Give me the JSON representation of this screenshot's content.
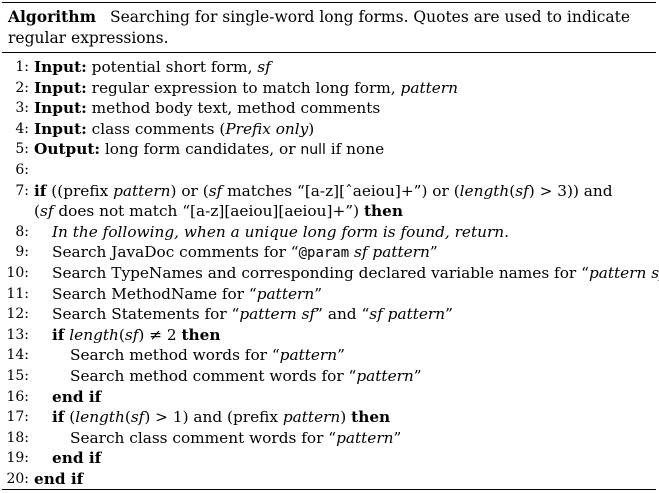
{
  "caption": {
    "head": "Algorithm",
    "text": "Searching for single-word long forms. Quotes are used to indicate regular expressions."
  },
  "lines": [
    {
      "n": "1:",
      "indent": 0,
      "parts": [
        [
          "kw",
          "Input:"
        ],
        [
          "t",
          " potential short form, "
        ],
        [
          "it",
          "sf"
        ]
      ]
    },
    {
      "n": "2:",
      "indent": 0,
      "parts": [
        [
          "kw",
          "Input:"
        ],
        [
          "t",
          " regular expression to match long form, "
        ],
        [
          "it",
          "pattern"
        ]
      ]
    },
    {
      "n": "3:",
      "indent": 0,
      "parts": [
        [
          "kw",
          "Input:"
        ],
        [
          "t",
          " method body text, method comments"
        ]
      ]
    },
    {
      "n": "4:",
      "indent": 0,
      "parts": [
        [
          "kw",
          "Input:"
        ],
        [
          "t",
          " class comments ("
        ],
        [
          "it",
          "Prefix only"
        ],
        [
          "t",
          ")"
        ]
      ]
    },
    {
      "n": "5:",
      "indent": 0,
      "parts": [
        [
          "kw",
          "Output:"
        ],
        [
          "t",
          " long form candidates, or "
        ],
        [
          "sans",
          "null"
        ],
        [
          "t",
          " if none"
        ]
      ]
    },
    {
      "n": "6:",
      "indent": 0,
      "parts": []
    },
    {
      "n": "7:",
      "indent": 0,
      "parts": [
        [
          "kw",
          "if"
        ],
        [
          "t",
          " ((prefix "
        ],
        [
          "it",
          "pattern"
        ],
        [
          "t",
          ") or ("
        ],
        [
          "it",
          "sf"
        ],
        [
          "t",
          " matches “[a-z][ˆaeiou]+”) or ("
        ],
        [
          "it",
          "length"
        ],
        [
          "t",
          "("
        ],
        [
          "it",
          "sf"
        ],
        [
          "t",
          ") > 3)) and"
        ]
      ]
    },
    {
      "n": "",
      "indent": 0,
      "parts": [
        [
          "t",
          "("
        ],
        [
          "it",
          "sf"
        ],
        [
          "t",
          " does not match “[a-z][aeiou][aeiou]+”) "
        ],
        [
          "kw",
          "then"
        ]
      ]
    },
    {
      "n": "8:",
      "indent": 1,
      "parts": [
        [
          "it",
          "In the following, when a unique long form is found, return."
        ]
      ]
    },
    {
      "n": "9:",
      "indent": 1,
      "parts": [
        [
          "t",
          "Search JavaDoc comments for “"
        ],
        [
          "mono",
          "@param"
        ],
        [
          "t",
          " "
        ],
        [
          "it",
          "sf pattern"
        ],
        [
          "t",
          "”"
        ]
      ]
    },
    {
      "n": "10:",
      "indent": 1,
      "parts": [
        [
          "t",
          "Search TypeNames and corresponding declared variable names for “"
        ],
        [
          "it",
          "pattern sf"
        ],
        [
          "t",
          "”"
        ]
      ]
    },
    {
      "n": "11:",
      "indent": 1,
      "parts": [
        [
          "t",
          "Search MethodName for “"
        ],
        [
          "it",
          "pattern"
        ],
        [
          "t",
          "”"
        ]
      ]
    },
    {
      "n": "12:",
      "indent": 1,
      "parts": [
        [
          "t",
          "Search Statements for “"
        ],
        [
          "it",
          "pattern sf"
        ],
        [
          "t",
          "” and “"
        ],
        [
          "it",
          "sf pattern"
        ],
        [
          "t",
          "”"
        ]
      ]
    },
    {
      "n": "13:",
      "indent": 1,
      "parts": [
        [
          "kw",
          "if"
        ],
        [
          "t",
          " "
        ],
        [
          "it",
          "length"
        ],
        [
          "t",
          "("
        ],
        [
          "it",
          "sf"
        ],
        [
          "t",
          ") ≠ 2 "
        ],
        [
          "kw",
          "then"
        ]
      ]
    },
    {
      "n": "14:",
      "indent": 2,
      "parts": [
        [
          "t",
          "Search method words for “"
        ],
        [
          "it",
          "pattern"
        ],
        [
          "t",
          "”"
        ]
      ]
    },
    {
      "n": "15:",
      "indent": 2,
      "parts": [
        [
          "t",
          "Search method comment words for “"
        ],
        [
          "it",
          "pattern"
        ],
        [
          "t",
          "”"
        ]
      ]
    },
    {
      "n": "16:",
      "indent": 1,
      "parts": [
        [
          "kw",
          "end if"
        ]
      ]
    },
    {
      "n": "17:",
      "indent": 1,
      "parts": [
        [
          "kw",
          "if"
        ],
        [
          "t",
          " ("
        ],
        [
          "it",
          "length"
        ],
        [
          "t",
          "("
        ],
        [
          "it",
          "sf"
        ],
        [
          "t",
          ") > 1) and (prefix "
        ],
        [
          "it",
          "pattern"
        ],
        [
          "t",
          ") "
        ],
        [
          "kw",
          "then"
        ]
      ]
    },
    {
      "n": "18:",
      "indent": 2,
      "parts": [
        [
          "t",
          "Search class comment words for “"
        ],
        [
          "it",
          "pattern"
        ],
        [
          "t",
          "”"
        ]
      ]
    },
    {
      "n": "19:",
      "indent": 1,
      "parts": [
        [
          "kw",
          "end if"
        ]
      ]
    },
    {
      "n": "20:",
      "indent": 0,
      "parts": [
        [
          "kw",
          "end if"
        ]
      ]
    }
  ]
}
